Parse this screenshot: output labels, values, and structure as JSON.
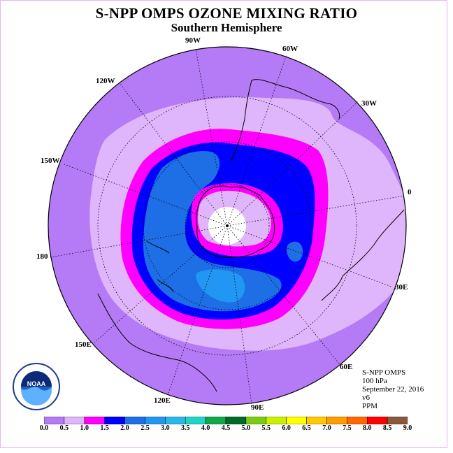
{
  "title": "S-NPP OMPS OZONE MIXING RATIO",
  "subtitle": "Southern Hemisphere",
  "longitude_labels": [
    "90W",
    "60W",
    "30W",
    "0",
    "30E",
    "60E",
    "90E",
    "120E",
    "150E",
    "180",
    "150W",
    "120W"
  ],
  "info": {
    "instrument": "S-NPP OMPS",
    "level": "100 hPa",
    "date": "September 22, 2016",
    "version": "v6",
    "units": "PPM"
  },
  "colorbar": {
    "ticks": [
      "0.0",
      "0.5",
      "1.0",
      "1.5",
      "2.0",
      "2.5",
      "3.0",
      "3.5",
      "4.0",
      "4.5",
      "5.0",
      "5.5",
      "6.0",
      "6.5",
      "7.0",
      "7.5",
      "8.0",
      "8.5",
      "9.0"
    ],
    "colors": [
      "#b57af5",
      "#dfb5fb",
      "#ff00ff",
      "#0000ff",
      "#1e6fe6",
      "#2196f3",
      "#2ab8e8",
      "#22d4c8",
      "#10a848",
      "#006a26",
      "#7ccd12",
      "#c8f000",
      "#ffff00",
      "#ffc800",
      "#ff9e00",
      "#ff6a00",
      "#ff0000",
      "#8b5a3c"
    ]
  },
  "logo": {
    "text": "NOAA"
  }
}
